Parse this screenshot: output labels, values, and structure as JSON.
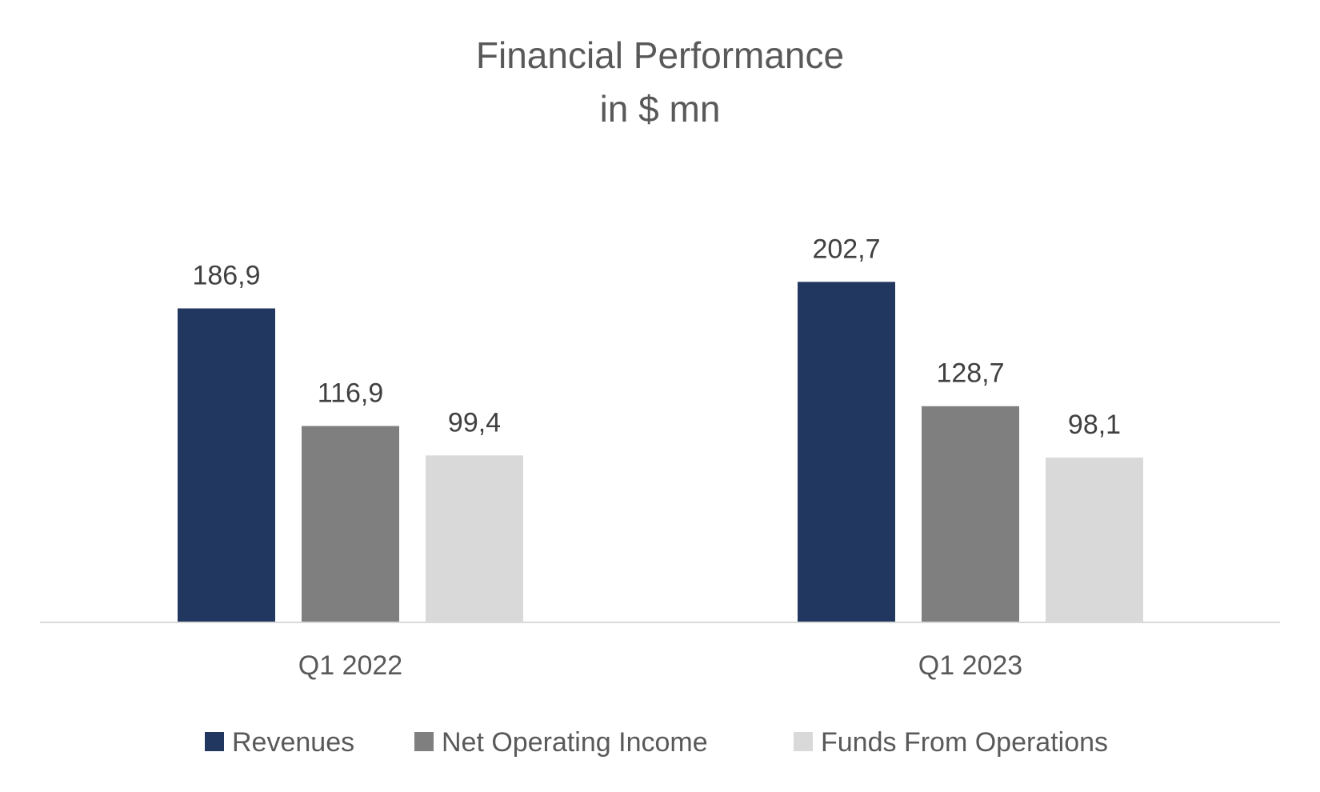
{
  "chart_data": {
    "type": "bar",
    "title": "Financial Performance",
    "subtitle": "in $ mn",
    "categories": [
      "Q1 2022",
      "Q1 2023"
    ],
    "series": [
      {
        "name": "Revenues",
        "values": [
          186.9,
          202.7
        ],
        "labels": [
          "186,9",
          "202,7"
        ],
        "color": "#22375f"
      },
      {
        "name": "Net Operating Income",
        "values": [
          116.9,
          128.7
        ],
        "labels": [
          "116,9",
          "128,7"
        ],
        "color": "#7f7f7f"
      },
      {
        "name": "Funds From Operations",
        "values": [
          99.4,
          98.1
        ],
        "labels": [
          "99,4",
          "98,1"
        ],
        "color": "#d9d9d9"
      }
    ],
    "ylim": [
      0,
      240
    ],
    "grid": false,
    "legend_position": "bottom",
    "axis_color": "#d9d9d9"
  }
}
